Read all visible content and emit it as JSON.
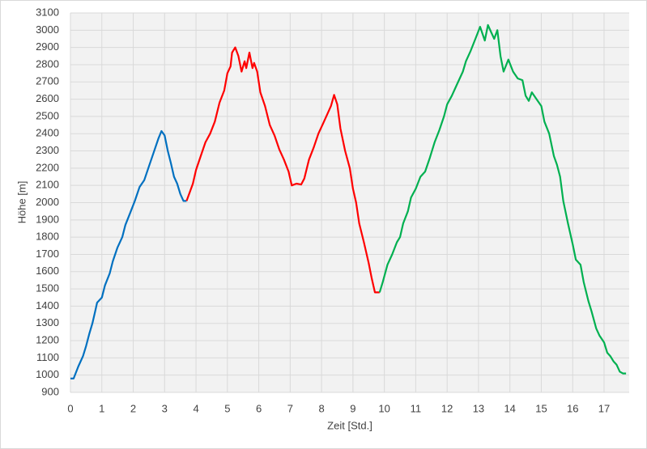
{
  "chart_data": {
    "type": "line",
    "x_label": "Zeit [Std.]",
    "y_label": "Höhe [m]",
    "xlim": [
      0,
      17.8
    ],
    "ylim": [
      900,
      3100
    ],
    "xticks": [
      0,
      1,
      2,
      3,
      4,
      5,
      6,
      7,
      8,
      9,
      10,
      11,
      12,
      13,
      14,
      15,
      16,
      17
    ],
    "yticks": [
      900,
      1000,
      1100,
      1200,
      1300,
      1400,
      1500,
      1600,
      1700,
      1800,
      1900,
      2000,
      2100,
      2200,
      2300,
      2400,
      2500,
      2600,
      2700,
      2800,
      2900,
      3000,
      3100
    ],
    "grid": true,
    "series": [
      {
        "color": "#0070c0",
        "x": [
          0,
          0.1,
          0.25,
          0.4,
          0.5,
          0.6,
          0.7,
          0.8,
          0.85,
          1.0,
          1.1,
          1.25,
          1.35,
          1.5,
          1.65,
          1.75,
          1.9,
          2.05,
          2.2,
          2.35,
          2.5,
          2.65,
          2.8,
          2.9,
          3.0,
          3.1,
          3.2,
          3.3,
          3.4,
          3.5,
          3.6,
          3.7
        ],
        "values": [
          980,
          980,
          1050,
          1110,
          1170,
          1240,
          1300,
          1380,
          1420,
          1450,
          1520,
          1590,
          1660,
          1740,
          1800,
          1870,
          1940,
          2010,
          2090,
          2130,
          2210,
          2290,
          2370,
          2415,
          2390,
          2300,
          2230,
          2150,
          2110,
          2050,
          2010,
          2010
        ]
      },
      {
        "color": "#ff0000",
        "x": [
          3.7,
          3.8,
          3.9,
          4.0,
          4.15,
          4.3,
          4.45,
          4.6,
          4.75,
          4.9,
          5.0,
          5.1,
          5.15,
          5.25,
          5.35,
          5.45,
          5.55,
          5.6,
          5.7,
          5.8,
          5.85,
          5.95,
          6.05,
          6.2,
          6.35,
          6.5,
          6.65,
          6.8,
          6.95,
          7.05,
          7.2,
          7.35,
          7.45,
          7.6,
          7.75,
          7.9,
          8.05,
          8.2,
          8.3,
          8.4,
          8.5,
          8.6,
          8.75,
          8.9,
          9.0,
          9.1,
          9.2,
          9.35,
          9.5,
          9.6,
          9.7,
          9.85
        ],
        "values": [
          2010,
          2060,
          2110,
          2190,
          2270,
          2350,
          2400,
          2470,
          2580,
          2650,
          2750,
          2790,
          2870,
          2900,
          2850,
          2760,
          2820,
          2780,
          2870,
          2780,
          2810,
          2760,
          2640,
          2560,
          2450,
          2390,
          2310,
          2250,
          2180,
          2100,
          2110,
          2105,
          2140,
          2250,
          2320,
          2400,
          2460,
          2520,
          2560,
          2625,
          2570,
          2430,
          2300,
          2200,
          2080,
          2000,
          1880,
          1770,
          1650,
          1560,
          1480,
          1480
        ]
      },
      {
        "color": "#00b050",
        "x": [
          9.85,
          9.95,
          10.1,
          10.25,
          10.4,
          10.5,
          10.6,
          10.75,
          10.85,
          11.0,
          11.15,
          11.3,
          11.45,
          11.6,
          11.75,
          11.9,
          12.0,
          12.15,
          12.3,
          12.5,
          12.6,
          12.75,
          12.9,
          13.05,
          13.2,
          13.3,
          13.4,
          13.5,
          13.6,
          13.7,
          13.8,
          13.95,
          14.1,
          14.25,
          14.4,
          14.5,
          14.6,
          14.7,
          14.85,
          15.0,
          15.1,
          15.25,
          15.4,
          15.5,
          15.6,
          15.7,
          15.85,
          16.0,
          16.1,
          16.25,
          16.35,
          16.5,
          16.6,
          16.75,
          16.85,
          17.0,
          17.1,
          17.2,
          17.3,
          17.4,
          17.5,
          17.6,
          17.7
        ],
        "values": [
          1480,
          1540,
          1640,
          1700,
          1770,
          1800,
          1880,
          1950,
          2030,
          2080,
          2150,
          2180,
          2260,
          2350,
          2420,
          2500,
          2570,
          2620,
          2680,
          2760,
          2820,
          2880,
          2950,
          3020,
          2940,
          3030,
          2990,
          2950,
          3000,
          2850,
          2760,
          2830,
          2760,
          2720,
          2710,
          2620,
          2590,
          2640,
          2600,
          2560,
          2470,
          2400,
          2270,
          2220,
          2150,
          2010,
          1880,
          1760,
          1670,
          1640,
          1540,
          1430,
          1370,
          1270,
          1230,
          1190,
          1130,
          1110,
          1080,
          1060,
          1020,
          1010,
          1010
        ]
      }
    ]
  }
}
